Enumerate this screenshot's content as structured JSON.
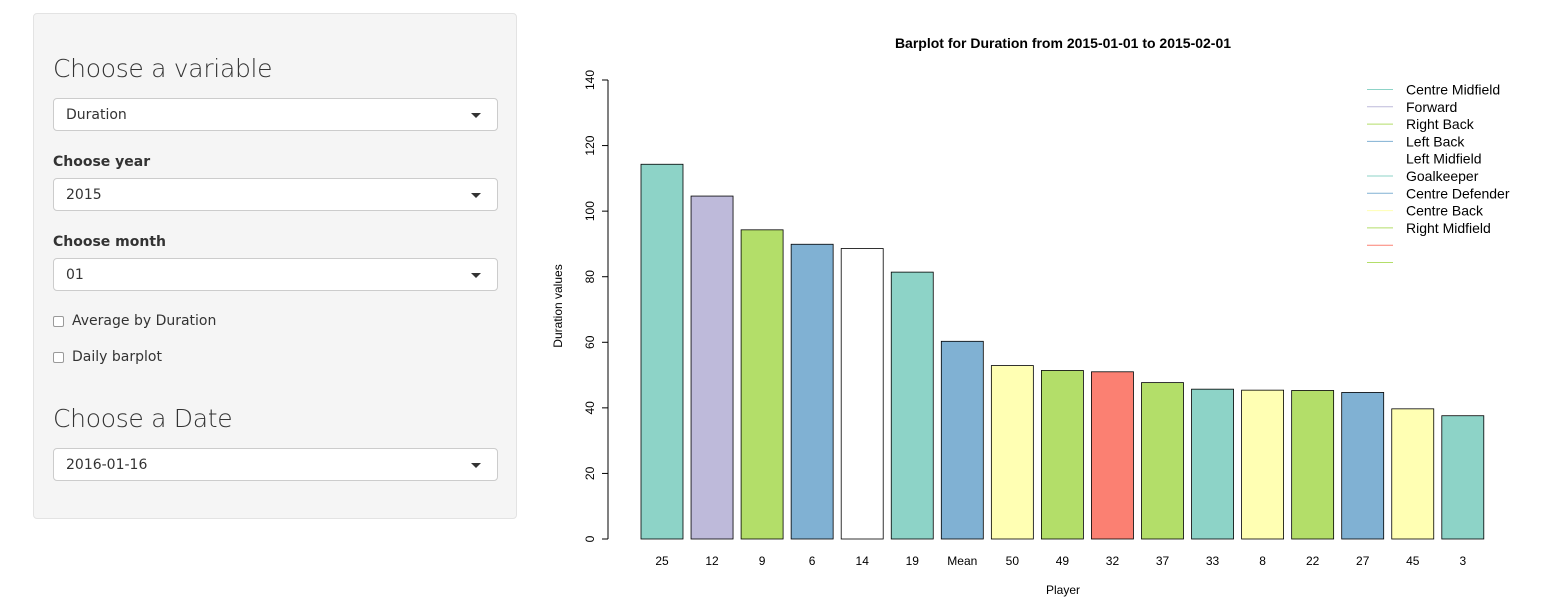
{
  "sidebar": {
    "variable_heading": "Choose a variable",
    "variable_select": "Duration",
    "year_label": "Choose year",
    "year_select": "2015",
    "month_label": "Choose month",
    "month_select": "01",
    "average_checkbox": "Average by Duration",
    "average_checked": false,
    "daily_checkbox": "Daily barplot",
    "daily_checked": false,
    "date_heading": "Choose a Date",
    "date_select": "2016-01-16"
  },
  "chart_data": {
    "type": "bar",
    "title": "Barplot for Duration from 2015-01-01 to 2015-02-01",
    "xlabel": "Player",
    "ylabel": "Duration  values",
    "ylim": [
      0,
      140
    ],
    "yticks": [
      0,
      20,
      40,
      60,
      80,
      100,
      120,
      140
    ],
    "categories": [
      "25",
      "12",
      "9",
      "6",
      "14",
      "19",
      "Mean",
      "50",
      "49",
      "32",
      "37",
      "33",
      "8",
      "22",
      "27",
      "45",
      "3"
    ],
    "values": [
      114.3,
      104.6,
      94.3,
      89.9,
      88.6,
      81.4,
      60.3,
      52.9,
      51.4,
      51.0,
      47.7,
      45.7,
      45.4,
      45.3,
      44.7,
      39.7,
      37.6
    ],
    "colors": [
      "#8DD3C7",
      "#BEBADA",
      "#B3DE69",
      "#80B1D3",
      "#FFFFFF",
      "#8DD3C7",
      "#80B1D3",
      "#FFFFB3",
      "#B3DE69",
      "#FB8072",
      "#B3DE69",
      "#8DD3C7",
      "#FFFFB3",
      "#B3DE69",
      "#80B1D3",
      "#FFFFB3",
      "#8DD3C7"
    ],
    "grid": false,
    "legend_position": "top-right",
    "legend": [
      {
        "label": "Centre Midfield",
        "color": "#8DD3C7"
      },
      {
        "label": "Forward",
        "color": "#BEBADA"
      },
      {
        "label": "Right Back",
        "color": "#B3DE69"
      },
      {
        "label": "Left Back",
        "color": "#80B1D3"
      },
      {
        "label": "Left Midfield",
        "color": "#FFFFFF"
      },
      {
        "label": "Goalkeeper",
        "color": "#8DD3C7"
      },
      {
        "label": "Centre Defender",
        "color": "#80B1D3"
      },
      {
        "label": "Centre Back",
        "color": "#FFFFB3"
      },
      {
        "label": "Right Midfield",
        "color": "#B3DE69"
      },
      {
        "label": "",
        "color": "#FB8072"
      },
      {
        "label": "",
        "color": "#B3DE69"
      }
    ]
  }
}
